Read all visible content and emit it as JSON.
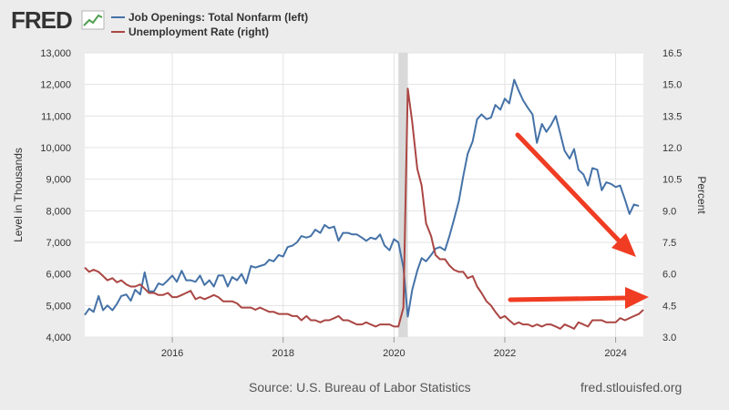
{
  "logo": {
    "text": "FRED"
  },
  "footer": {
    "source": "Source: U.S. Bureau of Labor Statistics",
    "url": "fred.stlouisfed.org"
  },
  "colors": {
    "background": "#ececec",
    "plot_background": "#ffffff",
    "job_openings": "#4572a7",
    "unemployment": "#aa4643",
    "recession": "#d9d9d9",
    "arrow": "#f03c23"
  },
  "chart_data": {
    "type": "line",
    "title": "",
    "xlabel": "",
    "ylabel_left": "Level in Thousands",
    "ylabel_right": "Percent",
    "xlim": [
      2014.42,
      2024.5
    ],
    "ylim_left": [
      4000,
      13000
    ],
    "ylim_right": [
      3.0,
      16.5
    ],
    "x_ticks": [
      2016,
      2018,
      2020,
      2022,
      2024
    ],
    "x_tick_labels": [
      "2016",
      "2018",
      "2020",
      "2022",
      "2024"
    ],
    "y_left_ticks": [
      4000,
      5000,
      6000,
      7000,
      8000,
      9000,
      10000,
      11000,
      12000,
      13000
    ],
    "y_left_tick_labels": [
      "4,000",
      "5,000",
      "6,000",
      "7,000",
      "8,000",
      "9,000",
      "10,000",
      "11,000",
      "12,000",
      "13,000"
    ],
    "y_right_ticks": [
      3.0,
      4.5,
      6.0,
      7.5,
      9.0,
      10.5,
      12.0,
      13.5,
      15.0,
      16.5
    ],
    "y_right_tick_labels": [
      "3.0",
      "4.5",
      "6.0",
      "7.5",
      "9.0",
      "10.5",
      "12.0",
      "13.5",
      "15.0",
      "16.5"
    ],
    "grid": true,
    "legend_position": "top-left",
    "recession": {
      "start": 2020.08,
      "end": 2020.25
    },
    "series": [
      {
        "name": "Job Openings: Total Nonfarm (left)",
        "axis": "left",
        "points": [
          [
            2014.42,
            4700
          ],
          [
            2014.5,
            4900
          ],
          [
            2014.58,
            4800
          ],
          [
            2014.67,
            5300
          ],
          [
            2014.75,
            4850
          ],
          [
            2014.83,
            5000
          ],
          [
            2014.92,
            4850
          ],
          [
            2015.0,
            5050
          ],
          [
            2015.08,
            5300
          ],
          [
            2015.17,
            5350
          ],
          [
            2015.25,
            5150
          ],
          [
            2015.33,
            5500
          ],
          [
            2015.42,
            5350
          ],
          [
            2015.5,
            6050
          ],
          [
            2015.58,
            5450
          ],
          [
            2015.67,
            5450
          ],
          [
            2015.75,
            5700
          ],
          [
            2015.83,
            5650
          ],
          [
            2015.92,
            5800
          ],
          [
            2016.0,
            5950
          ],
          [
            2016.08,
            5750
          ],
          [
            2016.17,
            6100
          ],
          [
            2016.25,
            5800
          ],
          [
            2016.33,
            5800
          ],
          [
            2016.42,
            5750
          ],
          [
            2016.5,
            5950
          ],
          [
            2016.58,
            5650
          ],
          [
            2016.67,
            5800
          ],
          [
            2016.75,
            5600
          ],
          [
            2016.83,
            5950
          ],
          [
            2016.92,
            5950
          ],
          [
            2017.0,
            5600
          ],
          [
            2017.08,
            5900
          ],
          [
            2017.17,
            5800
          ],
          [
            2017.25,
            6000
          ],
          [
            2017.33,
            5700
          ],
          [
            2017.42,
            6250
          ],
          [
            2017.5,
            6200
          ],
          [
            2017.58,
            6250
          ],
          [
            2017.67,
            6300
          ],
          [
            2017.75,
            6450
          ],
          [
            2017.83,
            6400
          ],
          [
            2017.92,
            6600
          ],
          [
            2018.0,
            6550
          ],
          [
            2018.08,
            6850
          ],
          [
            2018.17,
            6900
          ],
          [
            2018.25,
            7000
          ],
          [
            2018.33,
            7200
          ],
          [
            2018.42,
            7150
          ],
          [
            2018.5,
            7200
          ],
          [
            2018.58,
            7400
          ],
          [
            2018.67,
            7300
          ],
          [
            2018.75,
            7550
          ],
          [
            2018.83,
            7450
          ],
          [
            2018.92,
            7500
          ],
          [
            2019.0,
            7050
          ],
          [
            2019.08,
            7300
          ],
          [
            2019.17,
            7300
          ],
          [
            2019.25,
            7250
          ],
          [
            2019.33,
            7250
          ],
          [
            2019.42,
            7150
          ],
          [
            2019.5,
            7050
          ],
          [
            2019.58,
            7150
          ],
          [
            2019.67,
            7100
          ],
          [
            2019.75,
            7250
          ],
          [
            2019.83,
            6900
          ],
          [
            2019.92,
            6750
          ],
          [
            2020.0,
            7100
          ],
          [
            2020.08,
            7000
          ],
          [
            2020.17,
            6200
          ],
          [
            2020.25,
            4650
          ],
          [
            2020.33,
            5500
          ],
          [
            2020.42,
            6100
          ],
          [
            2020.5,
            6500
          ],
          [
            2020.58,
            6400
          ],
          [
            2020.67,
            6600
          ],
          [
            2020.75,
            6800
          ],
          [
            2020.83,
            6850
          ],
          [
            2020.92,
            6750
          ],
          [
            2021.0,
            7200
          ],
          [
            2021.08,
            7700
          ],
          [
            2021.17,
            8300
          ],
          [
            2021.25,
            9100
          ],
          [
            2021.33,
            9800
          ],
          [
            2021.42,
            10200
          ],
          [
            2021.5,
            10900
          ],
          [
            2021.58,
            11050
          ],
          [
            2021.67,
            10900
          ],
          [
            2021.75,
            10950
          ],
          [
            2021.83,
            11350
          ],
          [
            2021.92,
            11200
          ],
          [
            2022.0,
            11550
          ],
          [
            2022.08,
            11400
          ],
          [
            2022.17,
            12150
          ],
          [
            2022.25,
            11800
          ],
          [
            2022.33,
            11500
          ],
          [
            2022.42,
            11250
          ],
          [
            2022.5,
            11050
          ],
          [
            2022.58,
            10150
          ],
          [
            2022.67,
            10750
          ],
          [
            2022.75,
            10500
          ],
          [
            2022.83,
            10700
          ],
          [
            2022.92,
            11000
          ],
          [
            2023.0,
            10450
          ],
          [
            2023.08,
            9900
          ],
          [
            2023.17,
            9650
          ],
          [
            2023.25,
            9950
          ],
          [
            2023.33,
            9300
          ],
          [
            2023.42,
            9150
          ],
          [
            2023.5,
            8800
          ],
          [
            2023.58,
            9350
          ],
          [
            2023.67,
            9300
          ],
          [
            2023.75,
            8650
          ],
          [
            2023.83,
            8900
          ],
          [
            2023.92,
            8850
          ],
          [
            2024.0,
            8750
          ],
          [
            2024.08,
            8800
          ],
          [
            2024.17,
            8350
          ],
          [
            2024.25,
            7900
          ],
          [
            2024.33,
            8200
          ],
          [
            2024.42,
            8150
          ]
        ]
      },
      {
        "name": "Unemployment Rate (right)",
        "axis": "right",
        "points": [
          [
            2014.42,
            6.3
          ],
          [
            2014.5,
            6.1
          ],
          [
            2014.58,
            6.2
          ],
          [
            2014.67,
            6.1
          ],
          [
            2014.75,
            5.9
          ],
          [
            2014.83,
            5.7
          ],
          [
            2014.92,
            5.8
          ],
          [
            2015.0,
            5.6
          ],
          [
            2015.08,
            5.7
          ],
          [
            2015.17,
            5.5
          ],
          [
            2015.25,
            5.4
          ],
          [
            2015.33,
            5.4
          ],
          [
            2015.42,
            5.5
          ],
          [
            2015.5,
            5.3
          ],
          [
            2015.58,
            5.1
          ],
          [
            2015.67,
            5.1
          ],
          [
            2015.75,
            5.0
          ],
          [
            2015.83,
            5.0
          ],
          [
            2015.92,
            5.1
          ],
          [
            2016.0,
            4.9
          ],
          [
            2016.08,
            4.9
          ],
          [
            2016.17,
            5.0
          ],
          [
            2016.25,
            5.1
          ],
          [
            2016.33,
            5.2
          ],
          [
            2016.42,
            4.8
          ],
          [
            2016.5,
            4.9
          ],
          [
            2016.58,
            4.8
          ],
          [
            2016.67,
            4.9
          ],
          [
            2016.75,
            5.0
          ],
          [
            2016.83,
            4.9
          ],
          [
            2016.92,
            4.7
          ],
          [
            2017.0,
            4.7
          ],
          [
            2017.08,
            4.7
          ],
          [
            2017.17,
            4.6
          ],
          [
            2017.25,
            4.4
          ],
          [
            2017.33,
            4.4
          ],
          [
            2017.42,
            4.4
          ],
          [
            2017.5,
            4.3
          ],
          [
            2017.58,
            4.4
          ],
          [
            2017.67,
            4.3
          ],
          [
            2017.75,
            4.2
          ],
          [
            2017.83,
            4.2
          ],
          [
            2017.92,
            4.1
          ],
          [
            2018.0,
            4.1
          ],
          [
            2018.08,
            4.1
          ],
          [
            2018.17,
            4.0
          ],
          [
            2018.25,
            4.0
          ],
          [
            2018.33,
            3.8
          ],
          [
            2018.42,
            4.0
          ],
          [
            2018.5,
            3.8
          ],
          [
            2018.58,
            3.8
          ],
          [
            2018.67,
            3.7
          ],
          [
            2018.75,
            3.8
          ],
          [
            2018.83,
            3.8
          ],
          [
            2018.92,
            3.9
          ],
          [
            2019.0,
            4.0
          ],
          [
            2019.08,
            3.8
          ],
          [
            2019.17,
            3.8
          ],
          [
            2019.25,
            3.7
          ],
          [
            2019.33,
            3.6
          ],
          [
            2019.42,
            3.6
          ],
          [
            2019.5,
            3.7
          ],
          [
            2019.58,
            3.6
          ],
          [
            2019.67,
            3.5
          ],
          [
            2019.75,
            3.6
          ],
          [
            2019.83,
            3.6
          ],
          [
            2019.92,
            3.6
          ],
          [
            2020.0,
            3.5
          ],
          [
            2020.08,
            3.5
          ],
          [
            2020.17,
            4.4
          ],
          [
            2020.25,
            14.8
          ],
          [
            2020.33,
            13.2
          ],
          [
            2020.42,
            11.0
          ],
          [
            2020.5,
            10.2
          ],
          [
            2020.58,
            8.4
          ],
          [
            2020.67,
            7.8
          ],
          [
            2020.75,
            6.9
          ],
          [
            2020.83,
            6.7
          ],
          [
            2020.92,
            6.7
          ],
          [
            2021.0,
            6.4
          ],
          [
            2021.08,
            6.2
          ],
          [
            2021.17,
            6.1
          ],
          [
            2021.25,
            6.1
          ],
          [
            2021.33,
            5.8
          ],
          [
            2021.42,
            5.9
          ],
          [
            2021.5,
            5.4
          ],
          [
            2021.58,
            5.1
          ],
          [
            2021.67,
            4.7
          ],
          [
            2021.75,
            4.5
          ],
          [
            2021.83,
            4.2
          ],
          [
            2021.92,
            3.9
          ],
          [
            2022.0,
            4.0
          ],
          [
            2022.08,
            3.8
          ],
          [
            2022.17,
            3.6
          ],
          [
            2022.25,
            3.7
          ],
          [
            2022.33,
            3.6
          ],
          [
            2022.42,
            3.6
          ],
          [
            2022.5,
            3.5
          ],
          [
            2022.58,
            3.6
          ],
          [
            2022.67,
            3.5
          ],
          [
            2022.75,
            3.6
          ],
          [
            2022.83,
            3.6
          ],
          [
            2022.92,
            3.5
          ],
          [
            2023.0,
            3.4
          ],
          [
            2023.08,
            3.6
          ],
          [
            2023.17,
            3.5
          ],
          [
            2023.25,
            3.4
          ],
          [
            2023.33,
            3.7
          ],
          [
            2023.42,
            3.6
          ],
          [
            2023.5,
            3.5
          ],
          [
            2023.58,
            3.8
          ],
          [
            2023.67,
            3.8
          ],
          [
            2023.75,
            3.8
          ],
          [
            2023.83,
            3.7
          ],
          [
            2023.92,
            3.7
          ],
          [
            2024.0,
            3.7
          ],
          [
            2024.08,
            3.9
          ],
          [
            2024.17,
            3.8
          ],
          [
            2024.25,
            3.9
          ],
          [
            2024.33,
            4.0
          ],
          [
            2024.42,
            4.1
          ],
          [
            2024.5,
            4.3
          ]
        ]
      }
    ],
    "annotations": [
      {
        "type": "arrow",
        "direction": "down-right",
        "description": "falling job openings"
      },
      {
        "type": "arrow",
        "direction": "right",
        "description": "rising unemployment"
      }
    ]
  }
}
